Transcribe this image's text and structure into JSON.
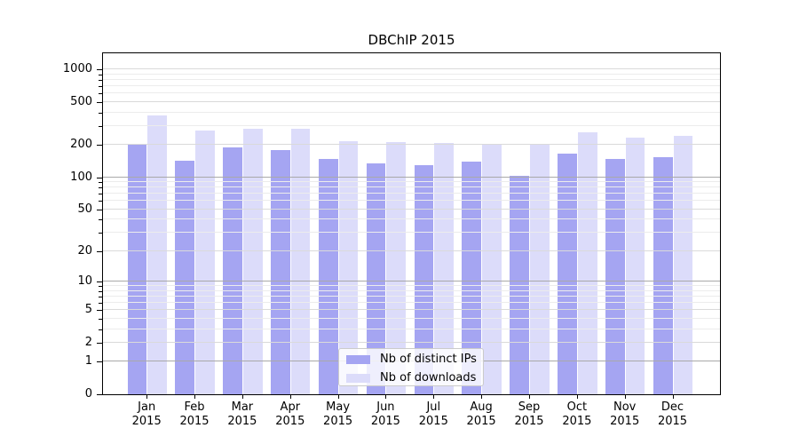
{
  "chart_data": {
    "type": "bar",
    "title": "DBChIP 2015",
    "categories": [
      "Jan",
      "Feb",
      "Mar",
      "Apr",
      "May",
      "Jun",
      "Jul",
      "Aug",
      "Sep",
      "Oct",
      "Nov",
      "Dec"
    ],
    "x_year": "2015",
    "series": [
      {
        "name": "Nb of distinct IPs",
        "color": "#a5a5f2",
        "values": [
          200,
          143,
          190,
          178,
          149,
          136,
          131,
          140,
          104,
          167,
          149,
          154
        ]
      },
      {
        "name": "Nb of downloads",
        "color": "#dcdcfa",
        "values": [
          375,
          274,
          284,
          282,
          216,
          211,
          209,
          202,
          205,
          264,
          232,
          241
        ]
      }
    ],
    "y_ticks": [
      0,
      1,
      2,
      5,
      10,
      20,
      50,
      100,
      200,
      500,
      1000
    ],
    "y_scale": "log10(v+1)",
    "ylim": [
      0,
      1430
    ],
    "xlabel": "",
    "ylabel": "",
    "grid": "horizontal",
    "legend_position": "inside-bottom-center"
  }
}
